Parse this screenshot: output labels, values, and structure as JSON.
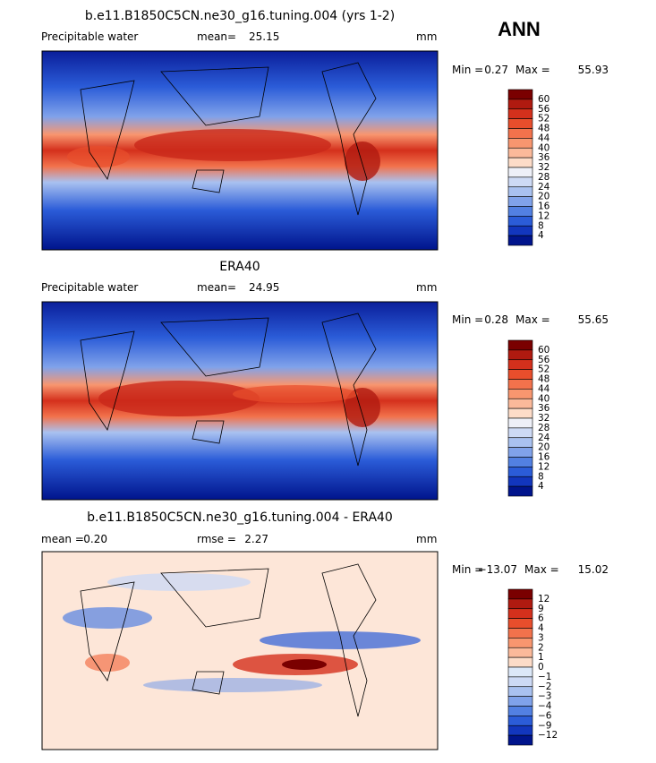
{
  "header": {
    "season": "ANN"
  },
  "panels": [
    {
      "title": "b.e11.B1850C5CN.ne30_g16.tuning.004 (yrs 1-2)",
      "left": "Precipitable water",
      "stat1_label": "mean=",
      "stat1": "25.15",
      "units": "mm",
      "min_label": "Min =",
      "min": "0.27",
      "max_label": "Max =",
      "max": "55.93",
      "levels": [
        "60",
        "56",
        "52",
        "48",
        "44",
        "40",
        "36",
        "32",
        "28",
        "24",
        "20",
        "16",
        "12",
        "8",
        "4"
      ],
      "colors": [
        "#7a0000",
        "#b01a10",
        "#d4301c",
        "#e84e2c",
        "#f2724c",
        "#f8966f",
        "#fbb99a",
        "#fddcc8",
        "#eef0f8",
        "#cddaf5",
        "#a9c1f0",
        "#80a2ea",
        "#5280e2",
        "#2b5cd8",
        "#1236bd",
        "#00148c"
      ]
    },
    {
      "title": "ERA40",
      "left": "Precipitable water",
      "stat1_label": "mean=",
      "stat1": "24.95",
      "units": "mm",
      "min_label": "Min =",
      "min": "0.28",
      "max_label": "Max =",
      "max": "55.65",
      "levels": [
        "60",
        "56",
        "52",
        "48",
        "44",
        "40",
        "36",
        "32",
        "28",
        "24",
        "20",
        "16",
        "12",
        "8",
        "4"
      ],
      "colors": [
        "#7a0000",
        "#b01a10",
        "#d4301c",
        "#e84e2c",
        "#f2724c",
        "#f8966f",
        "#fbb99a",
        "#fddcc8",
        "#eef0f8",
        "#cddaf5",
        "#a9c1f0",
        "#80a2ea",
        "#5280e2",
        "#2b5cd8",
        "#1236bd",
        "#00148c"
      ]
    },
    {
      "title": "b.e11.B1850C5CN.ne30_g16.tuning.004 - ERA40",
      "left": "mean =",
      "left_value": "0.20",
      "stat1_label": "rmse =",
      "stat1": "2.27",
      "units": "mm",
      "min_label": "Min =",
      "min": "−13.07",
      "max_label": "Max =",
      "max": "15.02",
      "levels": [
        "12",
        "9",
        "6",
        "4",
        "3",
        "2",
        "1",
        "0",
        "−1",
        "−2",
        "−3",
        "−4",
        "−6",
        "−9",
        "−12"
      ],
      "colors": [
        "#7a0000",
        "#b01a10",
        "#d4301c",
        "#e84e2c",
        "#f2724c",
        "#f8966f",
        "#fbb99a",
        "#fddcc8",
        "#dce8f8",
        "#cddaf5",
        "#a9c1f0",
        "#80a2ea",
        "#5280e2",
        "#2b5cd8",
        "#1236bd",
        "#00148c"
      ]
    }
  ]
}
